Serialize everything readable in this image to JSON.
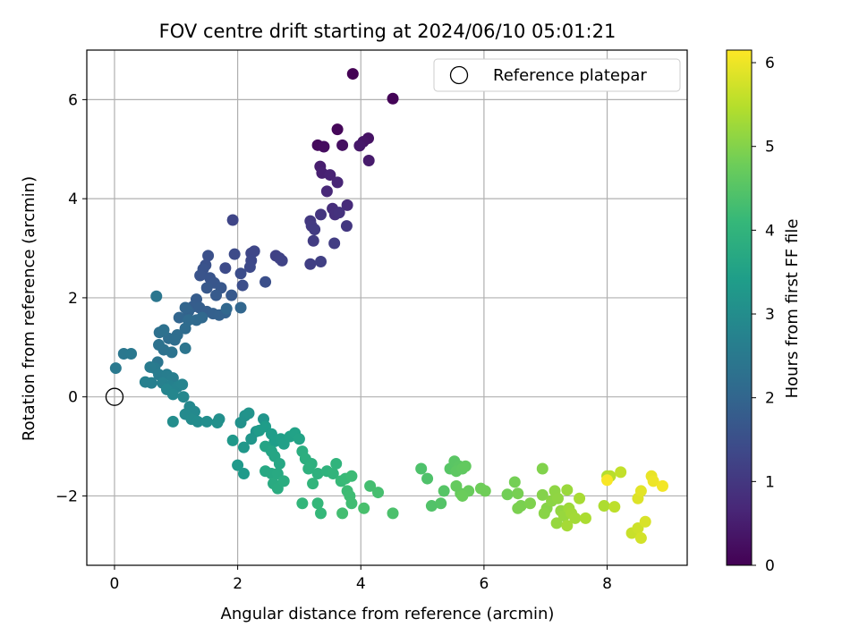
{
  "chart_data": {
    "type": "scatter",
    "title": "FOV centre drift starting at 2024/06/10 05:01:21",
    "xlabel": "Angular distance from reference (arcmin)",
    "ylabel": "Rotation from reference (arcmin)",
    "xlim": [
      -0.45,
      9.3
    ],
    "ylim": [
      -3.4,
      7.0
    ],
    "xticks": [
      0,
      2,
      4,
      6,
      8
    ],
    "yticks": [
      -2,
      0,
      2,
      4,
      6
    ],
    "xtick_labels": [
      "0",
      "2",
      "4",
      "6",
      "8"
    ],
    "ytick_labels": [
      "−2",
      "0",
      "2",
      "4",
      "6"
    ],
    "grid": true,
    "legend": {
      "placement": "top-right",
      "entries": [
        {
          "label": "Reference platepar",
          "marker": "open-circle",
          "x": 0,
          "y": 0
        }
      ]
    },
    "colorbar": {
      "label": "Hours from first FF file",
      "colormap": "viridis",
      "range": [
        0,
        6.15
      ],
      "ticks": [
        0,
        1,
        2,
        3,
        4,
        5,
        6
      ],
      "tick_labels": [
        "0",
        "1",
        "2",
        "3",
        "4",
        "5",
        "6"
      ]
    },
    "series": [
      {
        "points": [
          [
            3.87,
            6.52,
            0.0
          ],
          [
            4.52,
            6.02,
            0.05
          ],
          [
            3.62,
            5.4,
            0.1
          ],
          [
            3.3,
            5.08,
            0.15
          ],
          [
            3.4,
            5.05,
            0.2
          ],
          [
            3.7,
            5.08,
            0.25
          ],
          [
            4.12,
            5.22,
            0.3
          ],
          [
            4.04,
            5.15,
            0.35
          ],
          [
            3.98,
            5.07,
            0.4
          ],
          [
            4.13,
            4.77,
            0.45
          ],
          [
            3.34,
            4.65,
            0.5
          ],
          [
            3.37,
            4.52,
            0.55
          ],
          [
            3.5,
            4.48,
            0.6
          ],
          [
            3.62,
            4.33,
            0.65
          ],
          [
            3.45,
            4.15,
            0.7
          ],
          [
            3.78,
            3.87,
            0.75
          ],
          [
            3.54,
            3.8,
            0.8
          ],
          [
            3.58,
            3.68,
            0.85
          ],
          [
            3.65,
            3.72,
            0.9
          ],
          [
            3.35,
            3.68,
            0.95
          ],
          [
            3.77,
            3.45,
            1.0
          ],
          [
            3.18,
            3.55,
            1.02
          ],
          [
            3.2,
            3.45,
            1.05
          ],
          [
            3.25,
            3.38,
            1.08
          ],
          [
            3.23,
            3.15,
            1.1
          ],
          [
            3.57,
            3.1,
            1.12
          ],
          [
            3.18,
            2.68,
            1.15
          ],
          [
            3.35,
            2.73,
            1.18
          ],
          [
            2.62,
            2.85,
            1.2
          ],
          [
            2.68,
            2.8,
            1.22
          ],
          [
            2.72,
            2.75,
            1.25
          ],
          [
            1.92,
            3.57,
            1.28
          ],
          [
            2.22,
            2.9,
            1.3
          ],
          [
            2.27,
            2.94,
            1.32
          ],
          [
            2.22,
            2.75,
            1.35
          ],
          [
            2.2,
            2.62,
            1.38
          ],
          [
            1.95,
            2.88,
            1.4
          ],
          [
            1.8,
            2.6,
            1.42
          ],
          [
            2.05,
            2.49,
            1.45
          ],
          [
            2.08,
            2.25,
            1.48
          ],
          [
            2.45,
            2.32,
            1.5
          ],
          [
            1.52,
            2.85,
            1.52
          ],
          [
            1.48,
            2.66,
            1.55
          ],
          [
            1.44,
            2.58,
            1.58
          ],
          [
            1.39,
            2.45,
            1.6
          ],
          [
            1.55,
            2.4,
            1.62
          ],
          [
            1.62,
            2.3,
            1.65
          ],
          [
            1.73,
            2.2,
            1.68
          ],
          [
            1.5,
            2.2,
            1.7
          ],
          [
            1.9,
            2.05,
            1.72
          ],
          [
            1.65,
            2.05,
            1.75
          ],
          [
            1.33,
            1.97,
            1.78
          ],
          [
            1.27,
            1.82,
            1.8
          ],
          [
            1.38,
            1.8,
            1.82
          ],
          [
            1.5,
            1.72,
            1.85
          ],
          [
            1.6,
            1.68,
            1.88
          ],
          [
            1.7,
            1.65,
            1.9
          ],
          [
            1.8,
            1.7,
            1.92
          ],
          [
            1.2,
            1.72,
            1.95
          ],
          [
            1.15,
            1.8,
            1.98
          ],
          [
            1.05,
            1.6,
            2.0
          ],
          [
            2.05,
            1.8,
            2.02
          ],
          [
            1.82,
            1.78,
            2.05
          ],
          [
            1.42,
            1.6,
            2.08
          ],
          [
            1.33,
            1.55,
            2.1
          ],
          [
            1.2,
            1.55,
            2.12
          ],
          [
            1.15,
            1.38,
            2.15
          ],
          [
            1.02,
            1.25,
            2.18
          ],
          [
            0.88,
            1.18,
            2.2
          ],
          [
            0.98,
            1.15,
            2.22
          ],
          [
            0.73,
            1.3,
            2.25
          ],
          [
            0.8,
            1.35,
            2.28
          ],
          [
            0.72,
            1.05,
            2.3
          ],
          [
            0.8,
            0.95,
            2.32
          ],
          [
            0.93,
            0.9,
            2.35
          ],
          [
            1.15,
            0.98,
            2.38
          ],
          [
            0.7,
            0.7,
            2.4
          ],
          [
            0.68,
            2.03,
            2.42
          ],
          [
            0.15,
            0.87,
            2.45
          ],
          [
            0.27,
            0.87,
            2.48
          ],
          [
            0.02,
            0.58,
            2.5
          ],
          [
            0.65,
            0.58,
            2.52
          ],
          [
            0.58,
            0.6,
            2.55
          ],
          [
            0.72,
            0.45,
            2.58
          ],
          [
            0.85,
            0.45,
            2.6
          ],
          [
            0.95,
            0.38,
            2.62
          ],
          [
            0.6,
            0.28,
            2.65
          ],
          [
            0.5,
            0.3,
            2.68
          ],
          [
            0.78,
            0.28,
            2.7
          ],
          [
            0.9,
            0.22,
            2.72
          ],
          [
            1.02,
            0.2,
            2.75
          ],
          [
            1.1,
            0.25,
            2.78
          ],
          [
            0.85,
            0.15,
            2.8
          ],
          [
            0.95,
            0.05,
            2.82
          ],
          [
            1.12,
            0.0,
            2.85
          ],
          [
            1.22,
            -0.2,
            2.88
          ],
          [
            1.3,
            -0.3,
            2.9
          ],
          [
            1.15,
            -0.35,
            2.92
          ],
          [
            1.25,
            -0.45,
            2.95
          ],
          [
            1.35,
            -0.5,
            2.98
          ],
          [
            0.95,
            -0.5,
            3.0
          ],
          [
            1.5,
            -0.5,
            3.02
          ],
          [
            1.7,
            -0.45,
            3.05
          ],
          [
            1.67,
            -0.52,
            3.08
          ],
          [
            2.05,
            -0.52,
            3.1
          ],
          [
            2.12,
            -0.38,
            3.12
          ],
          [
            2.18,
            -0.33,
            3.15
          ],
          [
            2.3,
            -0.7,
            3.18
          ],
          [
            2.42,
            -0.45,
            3.2
          ],
          [
            2.22,
            -0.85,
            3.22
          ],
          [
            2.1,
            -1.02,
            3.25
          ],
          [
            1.92,
            -0.88,
            3.28
          ],
          [
            2.0,
            -1.38,
            3.3
          ],
          [
            2.1,
            -1.55,
            3.32
          ],
          [
            2.35,
            -0.68,
            3.35
          ],
          [
            2.45,
            -0.6,
            3.38
          ],
          [
            2.55,
            -0.75,
            3.4
          ],
          [
            2.6,
            -0.9,
            3.42
          ],
          [
            2.7,
            -0.85,
            3.45
          ],
          [
            2.75,
            -0.95,
            3.48
          ],
          [
            2.85,
            -0.8,
            3.5
          ],
          [
            2.93,
            -0.73,
            3.52
          ],
          [
            3.0,
            -0.85,
            3.55
          ],
          [
            2.45,
            -1.0,
            3.58
          ],
          [
            2.55,
            -1.1,
            3.6
          ],
          [
            2.6,
            -1.2,
            3.62
          ],
          [
            2.68,
            -1.35,
            3.65
          ],
          [
            2.45,
            -1.5,
            3.68
          ],
          [
            2.55,
            -1.55,
            3.7
          ],
          [
            2.65,
            -1.55,
            3.72
          ],
          [
            2.58,
            -1.75,
            3.75
          ],
          [
            2.65,
            -1.85,
            3.78
          ],
          [
            2.75,
            -1.7,
            3.8
          ],
          [
            3.05,
            -1.1,
            3.82
          ],
          [
            3.1,
            -1.25,
            3.85
          ],
          [
            3.2,
            -1.35,
            3.88
          ],
          [
            3.15,
            -1.45,
            3.9
          ],
          [
            3.3,
            -1.55,
            3.92
          ],
          [
            3.45,
            -1.5,
            3.95
          ],
          [
            3.6,
            -1.35,
            3.98
          ],
          [
            3.55,
            -1.55,
            4.0
          ],
          [
            3.22,
            -1.75,
            4.02
          ],
          [
            3.05,
            -2.15,
            4.05
          ],
          [
            3.3,
            -2.15,
            4.08
          ],
          [
            3.35,
            -2.35,
            4.1
          ],
          [
            3.68,
            -1.7,
            4.12
          ],
          [
            3.75,
            -1.65,
            4.15
          ],
          [
            3.85,
            -1.6,
            4.18
          ],
          [
            3.78,
            -1.9,
            4.2
          ],
          [
            3.82,
            -2.0,
            4.22
          ],
          [
            3.85,
            -2.15,
            4.25
          ],
          [
            3.7,
            -2.35,
            4.28
          ],
          [
            4.15,
            -1.8,
            4.3
          ],
          [
            4.28,
            -1.93,
            4.32
          ],
          [
            4.05,
            -2.25,
            4.35
          ],
          [
            4.52,
            -2.35,
            4.38
          ],
          [
            4.98,
            -1.45,
            4.4
          ],
          [
            5.08,
            -1.65,
            4.42
          ],
          [
            5.15,
            -2.2,
            4.45
          ],
          [
            5.3,
            -2.15,
            4.48
          ],
          [
            5.35,
            -1.9,
            4.5
          ],
          [
            5.45,
            -1.45,
            4.52
          ],
          [
            5.52,
            -1.3,
            4.55
          ],
          [
            5.6,
            -1.4,
            4.58
          ],
          [
            5.55,
            -1.5,
            4.6
          ],
          [
            5.65,
            -1.45,
            4.62
          ],
          [
            5.7,
            -1.4,
            4.65
          ],
          [
            5.55,
            -1.8,
            4.68
          ],
          [
            5.62,
            -1.95,
            4.7
          ],
          [
            5.75,
            -1.9,
            4.72
          ],
          [
            5.65,
            -2.0,
            4.75
          ],
          [
            5.95,
            -1.85,
            4.78
          ],
          [
            6.02,
            -1.9,
            4.8
          ],
          [
            6.38,
            -1.97,
            4.82
          ],
          [
            6.5,
            -1.72,
            4.85
          ],
          [
            6.55,
            -1.95,
            4.88
          ],
          [
            6.6,
            -2.2,
            4.9
          ],
          [
            6.55,
            -2.25,
            4.92
          ],
          [
            6.75,
            -2.15,
            4.95
          ],
          [
            6.95,
            -1.45,
            4.98
          ],
          [
            6.95,
            -1.98,
            5.0
          ],
          [
            7.02,
            -2.25,
            5.02
          ],
          [
            6.98,
            -2.35,
            5.05
          ],
          [
            7.1,
            -2.1,
            5.08
          ],
          [
            7.15,
            -1.9,
            5.1
          ],
          [
            7.2,
            -2.05,
            5.12
          ],
          [
            7.25,
            -2.3,
            5.15
          ],
          [
            7.18,
            -2.55,
            5.18
          ],
          [
            7.3,
            -2.4,
            5.2
          ],
          [
            7.35,
            -1.88,
            5.22
          ],
          [
            7.38,
            -2.25,
            5.25
          ],
          [
            7.42,
            -2.35,
            5.28
          ],
          [
            7.48,
            -2.45,
            5.3
          ],
          [
            7.35,
            -2.6,
            5.32
          ],
          [
            7.55,
            -2.05,
            5.35
          ],
          [
            7.65,
            -2.45,
            5.38
          ],
          [
            7.95,
            -2.2,
            5.4
          ],
          [
            8.0,
            -1.6,
            5.45
          ],
          [
            8.05,
            -1.6,
            5.5
          ],
          [
            8.12,
            -2.22,
            5.55
          ],
          [
            8.22,
            -1.52,
            5.6
          ],
          [
            8.4,
            -2.75,
            5.65
          ],
          [
            8.5,
            -2.65,
            5.7
          ],
          [
            8.55,
            -2.85,
            5.75
          ],
          [
            8.62,
            -2.52,
            5.8
          ],
          [
            8.5,
            -2.05,
            5.85
          ],
          [
            8.55,
            -1.9,
            5.9
          ],
          [
            8.72,
            -1.6,
            5.95
          ],
          [
            8.75,
            -1.7,
            6.0
          ],
          [
            8.9,
            -1.8,
            6.05
          ],
          [
            8.0,
            -1.68,
            6.1
          ]
        ]
      }
    ]
  }
}
